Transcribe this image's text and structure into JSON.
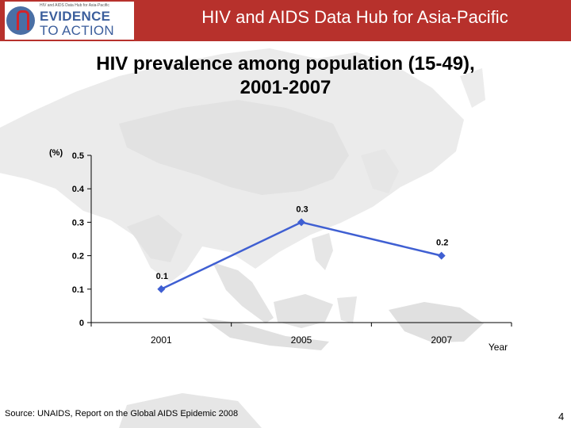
{
  "header": {
    "logo_tagline": "HIV and AIDS Data Hub for Asia-Pacific",
    "logo_line1": "EVIDENCE",
    "logo_line2": "TO ACTION",
    "title": "HIV and AIDS Data Hub for Asia-Pacific"
  },
  "slide": {
    "title_line1": "HIV prevalence among population (15-49),",
    "title_line2": "2001-2007"
  },
  "chart_data": {
    "type": "line",
    "x": [
      "2001",
      "2005",
      "2007"
    ],
    "series": [
      {
        "values": [
          0.1,
          0.3,
          0.2
        ],
        "labels": [
          "0.1",
          "0.3",
          "0.2"
        ]
      }
    ],
    "y_ticks": [
      0,
      0.1,
      0.2,
      0.3,
      0.4,
      0.5
    ],
    "y_tick_labels": [
      "0",
      "0.1",
      "0.2",
      "0.3",
      "0.4",
      "0.5"
    ],
    "ylim": [
      0,
      0.5
    ],
    "ylabel": "(%)",
    "xlabel": "Year",
    "grid": false,
    "legend": "none",
    "line_color": "#3f5fd2",
    "marker_color": "#3f5fd2"
  },
  "footer": {
    "source": "Source: UNAIDS, Report on the Global AIDS Epidemic 2008",
    "page": "4"
  }
}
